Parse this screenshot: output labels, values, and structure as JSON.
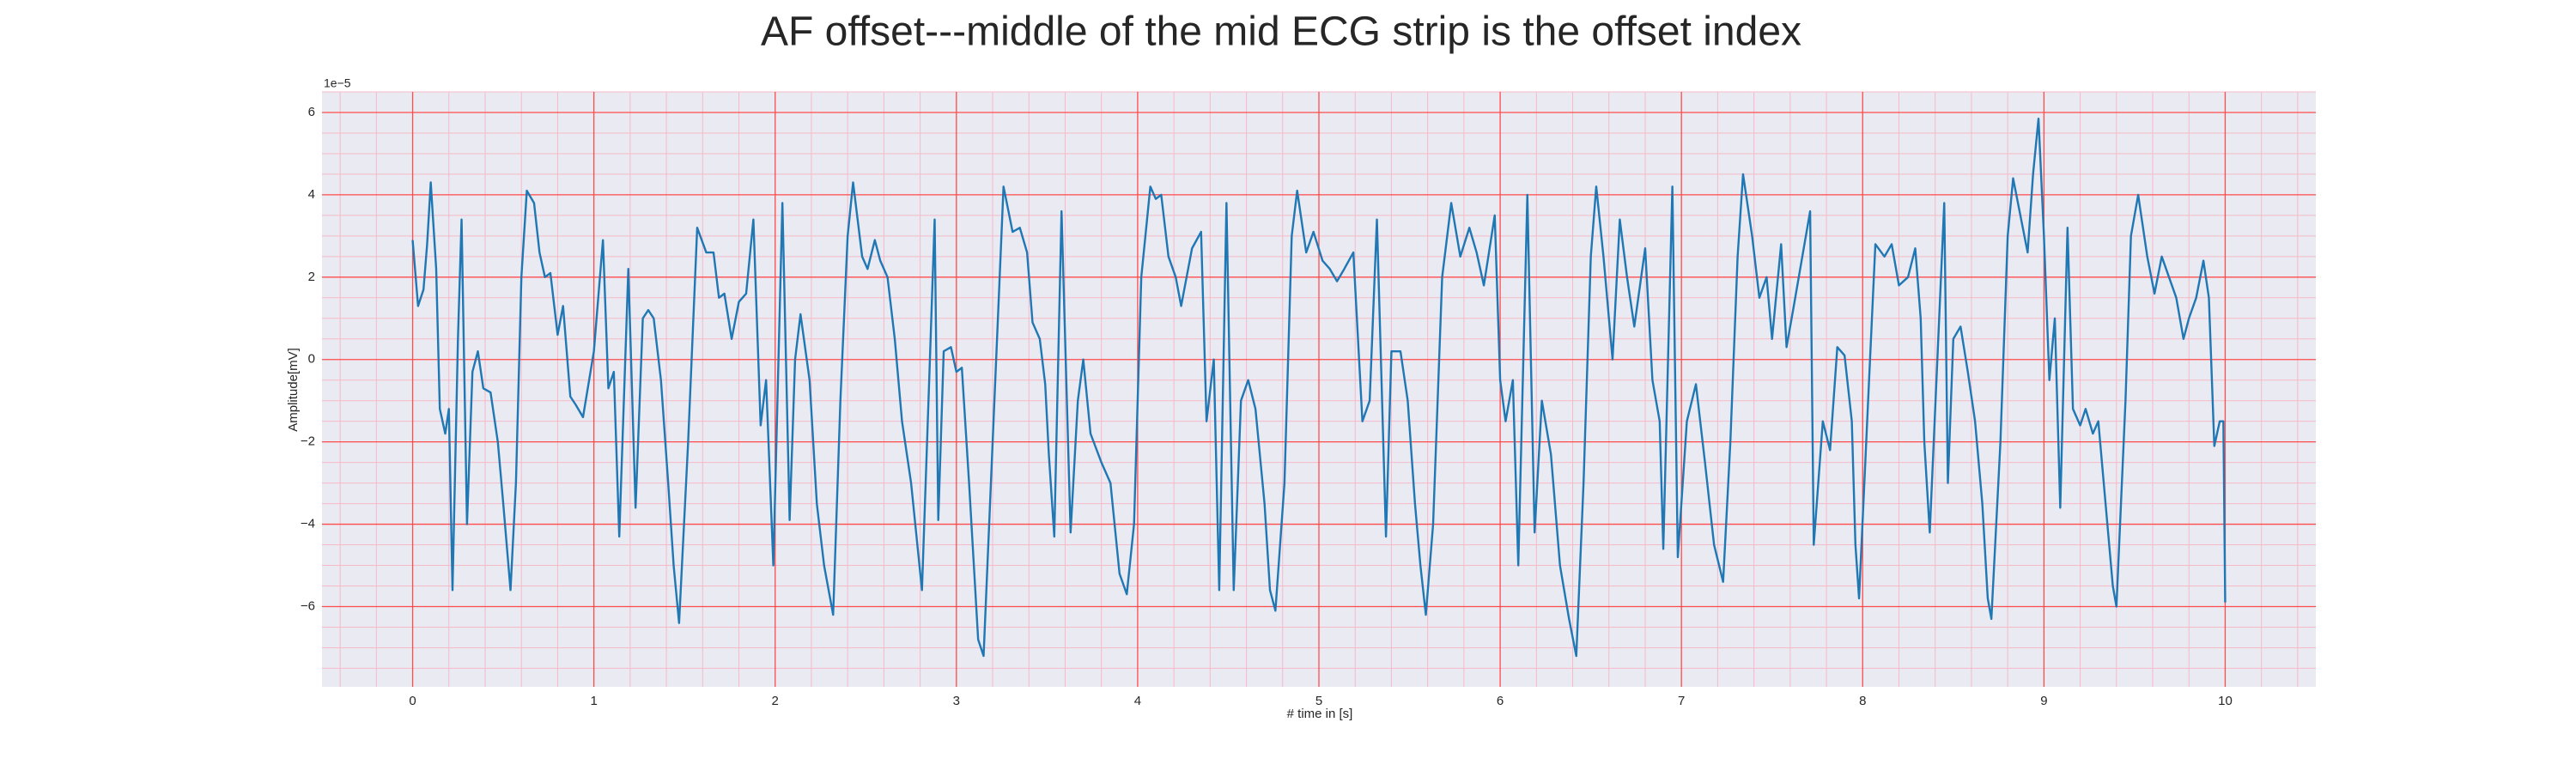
{
  "chart_data": {
    "type": "line",
    "title": "AF offset---middle of the mid ECG strip is the offset index",
    "x_label": "# time in [s]",
    "y_label": "Amplitude[mV]",
    "y_offset_text": "1e−5",
    "xlim": [
      -0.5,
      10.5
    ],
    "ylim": [
      -7.95,
      6.5
    ],
    "xticks": [
      0,
      1,
      2,
      3,
      4,
      5,
      6,
      7,
      8,
      9,
      10
    ],
    "yticks": [
      {
        "value": -6,
        "label": "−6"
      },
      {
        "value": -4,
        "label": "−4"
      },
      {
        "value": -2,
        "label": "−2"
      },
      0,
      2,
      4,
      6
    ],
    "grid": true,
    "minor_grid": true,
    "grid_color": "#ff4d4d",
    "minor_grid_color": "#f6b9c8",
    "background": "#eaeaf2",
    "x": [
      0,
      0.03,
      0.06,
      0.08,
      0.1,
      0.13,
      0.15,
      0.18,
      0.2,
      0.22,
      0.25,
      0.27,
      0.3,
      0.33,
      0.36,
      0.39,
      0.43,
      0.47,
      0.5,
      0.54,
      0.57,
      0.6,
      0.63,
      0.67,
      0.7,
      0.73,
      0.76,
      0.8,
      0.83,
      0.87,
      0.9,
      0.94,
      1.0,
      1.05,
      1.08,
      1.11,
      1.14,
      1.19,
      1.23,
      1.27,
      1.3,
      1.33,
      1.37,
      1.41,
      1.44,
      1.47,
      1.52,
      1.57,
      1.62,
      1.66,
      1.69,
      1.72,
      1.76,
      1.8,
      1.84,
      1.88,
      1.92,
      1.95,
      1.99,
      2.04,
      2.08,
      2.11,
      2.14,
      2.19,
      2.23,
      2.27,
      2.32,
      2.36,
      2.4,
      2.43,
      2.48,
      2.51,
      2.55,
      2.58,
      2.62,
      2.66,
      2.7,
      2.75,
      2.81,
      2.85,
      2.88,
      2.9,
      2.93,
      2.97,
      3.0,
      3.03,
      3.07,
      3.12,
      3.15,
      3.2,
      3.26,
      3.31,
      3.35,
      3.39,
      3.42,
      3.46,
      3.49,
      3.51,
      3.54,
      3.58,
      3.63,
      3.67,
      3.7,
      3.74,
      3.8,
      3.85,
      3.9,
      3.94,
      3.98,
      4.02,
      4.07,
      4.1,
      4.13,
      4.17,
      4.21,
      4.24,
      4.27,
      4.3,
      4.35,
      4.38,
      4.42,
      4.45,
      4.49,
      4.53,
      4.57,
      4.61,
      4.65,
      4.7,
      4.73,
      4.76,
      4.81,
      4.85,
      4.88,
      4.93,
      4.97,
      5.02,
      5.06,
      5.1,
      5.14,
      5.19,
      5.24,
      5.28,
      5.32,
      5.37,
      5.4,
      5.45,
      5.49,
      5.53,
      5.56,
      5.59,
      5.63,
      5.68,
      5.73,
      5.78,
      5.83,
      5.87,
      5.91,
      5.97,
      6.0,
      6.03,
      6.07,
      6.1,
      6.15,
      6.19,
      6.23,
      6.28,
      6.33,
      6.38,
      6.42,
      6.46,
      6.5,
      6.53,
      6.57,
      6.62,
      6.66,
      6.7,
      6.74,
      6.8,
      6.84,
      6.88,
      6.9,
      6.95,
      6.98,
      7.03,
      7.08,
      7.13,
      7.18,
      7.23,
      7.27,
      7.31,
      7.34,
      7.39,
      7.43,
      7.47,
      7.5,
      7.55,
      7.58,
      7.62,
      7.71,
      7.73,
      7.78,
      7.82,
      7.86,
      7.9,
      7.94,
      7.96,
      7.98,
      8.03,
      8.07,
      8.12,
      8.16,
      8.2,
      8.25,
      8.29,
      8.32,
      8.34,
      8.37,
      8.45,
      8.47,
      8.5,
      8.54,
      8.58,
      8.62,
      8.66,
      8.69,
      8.71,
      8.76,
      8.8,
      8.83,
      8.87,
      8.91,
      8.94,
      8.97,
      9.0,
      9.03,
      9.06,
      9.09,
      9.13,
      9.16,
      9.2,
      9.23,
      9.27,
      9.3,
      9.34,
      9.38,
      9.4,
      9.45,
      9.48,
      9.52,
      9.57,
      9.61,
      9.65,
      9.69,
      9.73,
      9.77,
      9.8,
      9.84,
      9.88,
      9.91,
      9.94,
      9.97,
      9.99,
      10.0
    ],
    "series": [
      {
        "color": "#1f77b4",
        "values": [
          2.9,
          1.3,
          1.7,
          2.8,
          4.3,
          2.2,
          -1.2,
          -1.8,
          -1.2,
          -5.6,
          0.5,
          3.4,
          -4,
          -0.3,
          0.2,
          -0.7,
          -0.8,
          -2,
          -3.5,
          -5.6,
          -3,
          2,
          4.1,
          3.8,
          2.6,
          2,
          2.1,
          0.6,
          1.3,
          -0.9,
          -1.1,
          -1.4,
          0.2,
          2.9,
          -0.7,
          -0.3,
          -4.3,
          2.2,
          -3.6,
          1.0,
          1.2,
          1.0,
          -0.5,
          -3,
          -5,
          -6.4,
          -2,
          3.2,
          2.6,
          2.6,
          1.5,
          1.6,
          0.5,
          1.4,
          1.6,
          3.4,
          -1.6,
          -0.5,
          -5,
          3.8,
          -3.9,
          0,
          1.1,
          -0.5,
          -3.5,
          -5,
          -6.2,
          -1,
          3,
          4.3,
          2.5,
          2.2,
          2.9,
          2.4,
          2,
          0.5,
          -1.5,
          -3,
          -5.6,
          -0.5,
          3.4,
          -3.9,
          0.2,
          0.3,
          -0.3,
          -0.2,
          -3,
          -6.8,
          -7.2,
          -2,
          4.2,
          3.1,
          3.2,
          2.6,
          0.9,
          0.5,
          -0.6,
          -2.3,
          -4.3,
          3.6,
          -4.2,
          -1.0,
          0,
          -1.8,
          -2.5,
          -3,
          -5.2,
          -5.7,
          -4,
          2,
          4.2,
          3.9,
          4,
          2.5,
          2,
          1.3,
          2,
          2.7,
          3.1,
          -1.5,
          0,
          -5.6,
          3.8,
          -5.6,
          -1,
          -0.5,
          -1.2,
          -3.5,
          -5.6,
          -6.1,
          -3,
          3,
          4.1,
          2.6,
          3.1,
          2.4,
          2.2,
          1.9,
          2.2,
          2.6,
          -1.5,
          -1,
          3.4,
          -4.3,
          0.2,
          0.2,
          -1,
          -3.5,
          -5,
          -6.2,
          -4,
          2,
          3.8,
          2.5,
          3.2,
          2.6,
          1.8,
          3.5,
          -0.5,
          -1.5,
          -0.5,
          -5,
          4,
          -4.2,
          -1,
          -2.3,
          -5,
          -6.3,
          -7.2,
          -3,
          2.5,
          4.2,
          2.5,
          0,
          3.4,
          2,
          0.8,
          2.7,
          -0.5,
          -1.5,
          -4.6,
          4.2,
          -4.8,
          -1.5,
          -0.6,
          -2.5,
          -4.5,
          -5.4,
          -2,
          2.5,
          4.5,
          3,
          1.5,
          2,
          0.5,
          2.8,
          0.3,
          1.3,
          3.6,
          -4.5,
          -1.5,
          -2.2,
          0.3,
          0.1,
          -1.5,
          -4.5,
          -5.8,
          -1,
          2.8,
          2.5,
          2.8,
          1.8,
          2,
          2.7,
          1,
          -2,
          -4.2,
          3.8,
          -3,
          0.5,
          0.8,
          -0.3,
          -1.5,
          -3.5,
          -5.8,
          -6.3,
          -2,
          3,
          4.4,
          3.5,
          2.6,
          4.5,
          5.85,
          3,
          -0.5,
          1,
          -3.6,
          3.2,
          -1.2,
          -1.6,
          -1.2,
          -1.8,
          -1.5,
          -3.5,
          -5.5,
          -6,
          -1,
          3,
          4,
          2.5,
          1.6,
          2.5,
          2,
          1.5,
          0.5,
          1,
          1.5,
          2.4,
          1.5,
          -2.1,
          -1.5,
          -1.5,
          -5.9
        ]
      }
    ]
  }
}
